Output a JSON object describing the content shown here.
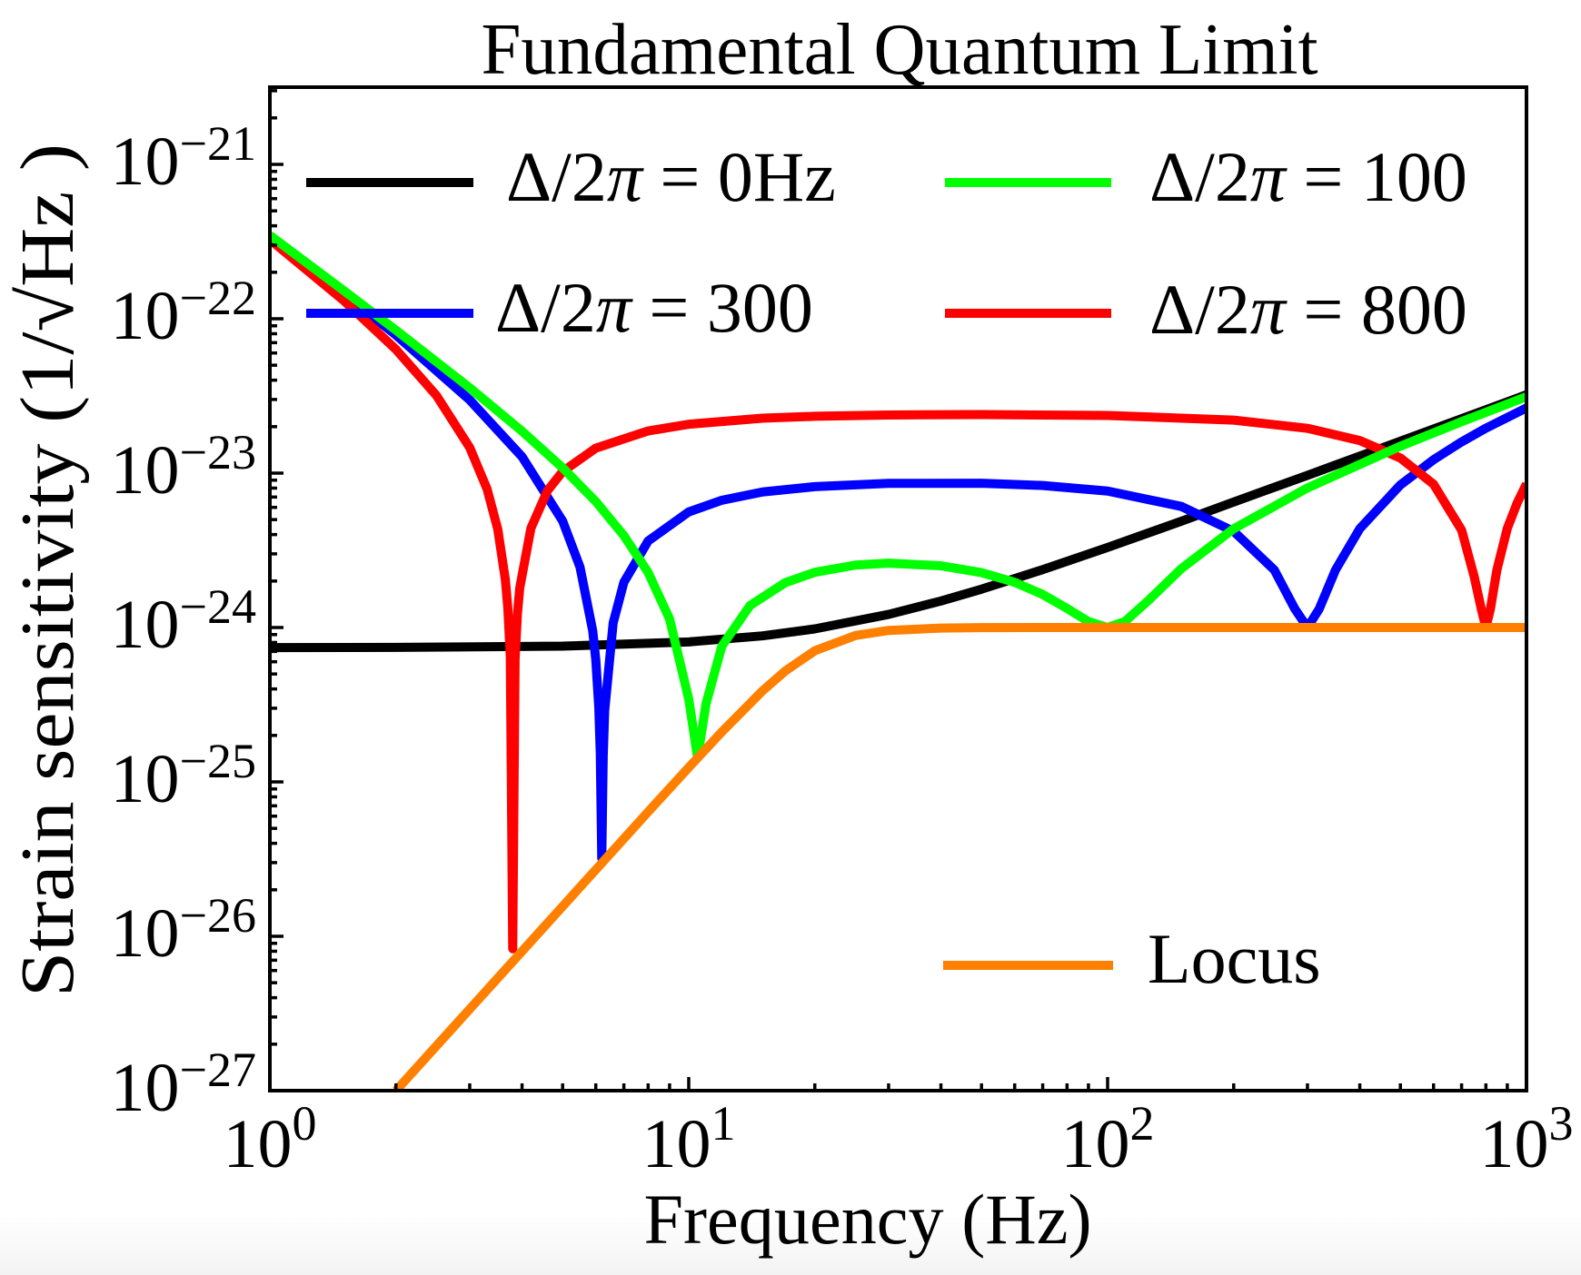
{
  "chart_data": {
    "type": "line",
    "title": "Fundamental Quantum Limit",
    "xlabel": "Frequency (Hz)",
    "ylabel": "Strain sensitivity (1/√Hz )",
    "xscale": "log",
    "yscale": "log",
    "xlim": [
      1,
      1000
    ],
    "ylim": [
      1e-27,
      3.1e-21
    ],
    "grid": false,
    "legend_placement": "top (two columns) and lower-right",
    "x_ticks": [
      {
        "value": 1,
        "base": "10",
        "exp": "0"
      },
      {
        "value": 10,
        "base": "10",
        "exp": "1"
      },
      {
        "value": 100,
        "base": "10",
        "exp": "2"
      },
      {
        "value": 1000,
        "base": "10",
        "exp": "3"
      }
    ],
    "y_ticks": [
      {
        "value": 1e-21,
        "base": "10",
        "exp": "−21"
      },
      {
        "value": 1e-22,
        "base": "10",
        "exp": "−22"
      },
      {
        "value": 1e-23,
        "base": "10",
        "exp": "−23"
      },
      {
        "value": 1e-24,
        "base": "10",
        "exp": "−24"
      },
      {
        "value": 1e-25,
        "base": "10",
        "exp": "−25"
      },
      {
        "value": 1e-26,
        "base": "10",
        "exp": "−26"
      },
      {
        "value": 1e-27,
        "base": "10",
        "exp": "−27"
      }
    ],
    "series": [
      {
        "name": "Δ/2π = 0Hz",
        "color": "#000000",
        "x": [
          1,
          2,
          5,
          10,
          15,
          20,
          30,
          40,
          50,
          70,
          100,
          150,
          200,
          300,
          500,
          700,
          1000
        ],
        "y": [
          7.414e-25,
          7.43e-25,
          7.57e-25,
          8.07e-25,
          8.83e-25,
          9.8e-25,
          1.216e-24,
          1.485e-24,
          1.771e-24,
          2.371e-24,
          3.302e-24,
          4.882e-24,
          6.5e-24,
          9.68e-24,
          1.61e-23,
          2.253e-23,
          3.218e-23
        ]
      },
      {
        "name": "Δ/2π = 300",
        "color": "#0000ff",
        "x": [
          1,
          1.5,
          2,
          3,
          4,
          5,
          5.5,
          5.9,
          6.0,
          6.1,
          6.15,
          6.2,
          6.25,
          6.3,
          6.6,
          7,
          8,
          10,
          12,
          15,
          20,
          30,
          50,
          70,
          100,
          150,
          200,
          250,
          280,
          300,
          320,
          350,
          400,
          500,
          600,
          700,
          800,
          1000
        ],
        "y": [
          3.409e-22,
          1.464e-22,
          7.839e-23,
          2.978e-23,
          1.277e-23,
          4.895e-24,
          2.465e-24,
          9.5e-25,
          6.17e-25,
          3.02e-25,
          1.52e-25,
          3.2e-26,
          1.48e-25,
          2.89e-25,
          1.07e-24,
          1.962e-24,
          3.637e-24,
          5.605e-24,
          6.675e-24,
          7.55e-24,
          8.176e-24,
          8.586e-24,
          8.597e-24,
          8.318e-24,
          7.649e-24,
          6.084e-24,
          4.193e-24,
          2.36e-24,
          1.318e-24,
          1e-24,
          1.318e-24,
          2.36e-24,
          4.37e-24,
          8.39e-24,
          1.2216e-23,
          1.594e-23,
          1.954e-23,
          2.645e-23
        ]
      },
      {
        "name": "Δ/2π = 800",
        "color": "#ff0000",
        "x": [
          1,
          1.5,
          2,
          2.5,
          3,
          3.3,
          3.5,
          3.65,
          3.7,
          3.75,
          3.8,
          3.85,
          3.9,
          3.95,
          4.2,
          4.6,
          5,
          6,
          8,
          10,
          15,
          20,
          30,
          50,
          100,
          200,
          300,
          400,
          500,
          600,
          700,
          750,
          780,
          800,
          820,
          850,
          900,
          950,
          1000
        ],
        "y": [
          3.258e-22,
          1.313e-22,
          6.327e-23,
          3.176e-23,
          1.465e-23,
          7.9e-24,
          4.334e-24,
          2.034e-24,
          1.328e-24,
          6.5e-25,
          8.3e-27,
          6.25e-25,
          1.227e-24,
          1.806e-24,
          4.397e-24,
          7.7e-24,
          1.024e-23,
          1.452e-23,
          1.877e-23,
          2.074e-23,
          2.268e-23,
          2.334e-23,
          2.38e-23,
          2.396e-23,
          2.364e-23,
          2.204e-23,
          1.951e-23,
          1.626e-23,
          1.253e-23,
          8.48e-24,
          4.276e-24,
          2.142e-24,
          1.318e-24,
          1e-24,
          1.316e-24,
          2.363e-24,
          4.39e-24,
          6.402e-24,
          8.517e-24
        ]
      },
      {
        "name": "Δ/2π = 100",
        "color": "#00ff00",
        "x": [
          1,
          1.5,
          2,
          3,
          4,
          5,
          6,
          7,
          8,
          9,
          10,
          10.5,
          11,
          12,
          14,
          17,
          20,
          25,
          30,
          40,
          50,
          60,
          70,
          80,
          90,
          100,
          110,
          125,
          150,
          200,
          300,
          500,
          700,
          1000
        ],
        "y": [
          3.469e-22,
          1.524e-22,
          8.434e-23,
          3.572e-23,
          1.87e-23,
          1.083e-23,
          6.548e-24,
          3.94e-24,
          2.273e-24,
          1.137e-24,
          3.44e-25,
          1.432e-25,
          3.22e-25,
          7.58e-25,
          1.387e-24,
          1.952e-24,
          2.278e-24,
          2.538e-24,
          2.61e-24,
          2.511e-24,
          2.267e-24,
          1.963e-24,
          1.637e-24,
          1.33e-24,
          1.093e-24,
          1e-24,
          1.094e-24,
          1.492e-24,
          2.408e-24,
          4.36e-24,
          8.022e-24,
          1.494e-23,
          2.155e-23,
          3.128e-23
        ]
      },
      {
        "name": "Locus",
        "color": "#ff8000",
        "x": [
          2,
          3,
          4,
          5,
          6,
          8,
          10,
          12,
          15,
          17,
          20,
          25,
          30,
          40,
          50,
          70,
          100,
          1000
        ],
        "y": [
          1e-27,
          3.375e-27,
          8e-27,
          1.5625e-26,
          2.7e-26,
          6.4e-26,
          1.24e-25,
          2.11e-25,
          3.887e-25,
          5.23e-25,
          7.07e-25,
          8.88e-25,
          9.57e-25,
          9.92e-25,
          9.98e-25,
          1e-24,
          1e-24,
          1e-24
        ]
      }
    ]
  }
}
